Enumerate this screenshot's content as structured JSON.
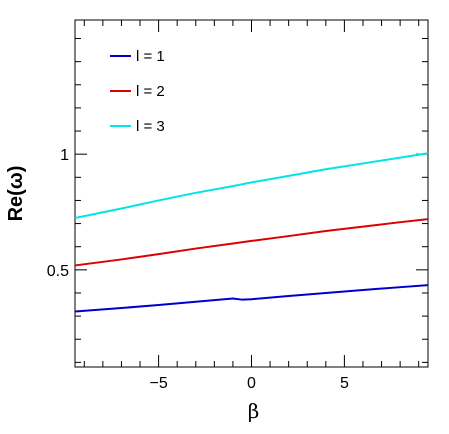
{
  "chart_data": {
    "type": "line",
    "xlabel": "β",
    "ylabel": "Re(ω)",
    "xlim": [
      -9.5,
      9.5
    ],
    "ylim": [
      0.08,
      1.58
    ],
    "x_ticks": [
      -5,
      0,
      5
    ],
    "x_tick_labels": [
      "−5",
      "0",
      "5"
    ],
    "y_ticks": [
      0.5,
      1
    ],
    "y_tick_labels": [
      "0.5",
      "1"
    ],
    "grid": false,
    "legend_position": "top-left",
    "series": [
      {
        "name": "l = 1",
        "color": "#0000cc",
        "x": [
          -9.5,
          -7,
          -5,
          -3,
          -1,
          -0.5,
          0,
          2,
          4,
          6,
          8,
          9.5
        ],
        "y": [
          0.32,
          0.335,
          0.348,
          0.362,
          0.376,
          0.371,
          0.373,
          0.387,
          0.4,
          0.413,
          0.425,
          0.434
        ]
      },
      {
        "name": "l = 2",
        "color": "#dd0000",
        "x": [
          -9.5,
          -7,
          -5,
          -3,
          -1,
          0,
          2,
          4,
          6,
          8,
          9.5
        ],
        "y": [
          0.519,
          0.545,
          0.568,
          0.592,
          0.614,
          0.625,
          0.646,
          0.668,
          0.687,
          0.706,
          0.719
        ]
      },
      {
        "name": "l = 3",
        "color": "#00e5e5",
        "x": [
          -9.5,
          -7,
          -5,
          -3,
          -1,
          0,
          2,
          4,
          6,
          8,
          9.5
        ],
        "y": [
          0.724,
          0.765,
          0.8,
          0.833,
          0.862,
          0.878,
          0.906,
          0.935,
          0.96,
          0.985,
          1.004
        ]
      }
    ]
  }
}
